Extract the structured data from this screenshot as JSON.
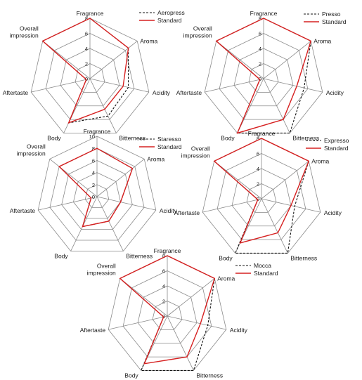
{
  "figure": {
    "colors": {
      "grid": "#8a8a8a",
      "standard": "#d62020",
      "sample": "#111111"
    }
  },
  "chart_data": [
    {
      "type": "radar",
      "axes": [
        "Fragrance",
        "Aroma",
        "Acidity",
        "Bitterness",
        "Body",
        "Aftertaste",
        "Overall impression"
      ],
      "r_ticks": [
        "2",
        "4",
        "6",
        "8"
      ],
      "rlim": [
        0,
        8
      ],
      "legend_position": "top-right",
      "series": [
        {
          "name": "Aeropress",
          "style": "dashed",
          "values": [
            8,
            6.5,
            5.2,
            5.5,
            6.5,
            0.5,
            8
          ]
        },
        {
          "name": "Standard",
          "style": "solid",
          "values": [
            8,
            6.5,
            4.5,
            4.5,
            6.5,
            0.5,
            8
          ]
        }
      ]
    },
    {
      "type": "radar",
      "axes": [
        "Fragrance",
        "Aroma",
        "Acidity",
        "Bitterness",
        "Body",
        "Aftertaste",
        "Overall impression"
      ],
      "r_ticks": [
        "2",
        "4",
        "6",
        "8"
      ],
      "rlim": [
        0,
        8
      ],
      "legend_position": "top-right",
      "series": [
        {
          "name": "Presso",
          "style": "dashed",
          "values": [
            8,
            8,
            5.5,
            8,
            8,
            0.5,
            8
          ]
        },
        {
          "name": "Standard",
          "style": "solid",
          "values": [
            8,
            8,
            4.5,
            6,
            8,
            0.5,
            8
          ]
        }
      ]
    },
    {
      "type": "radar",
      "axes": [
        "Fragrance",
        "Aroma",
        "Acidity",
        "Bitterness",
        "Body",
        "Aftertaste",
        "Overall impression"
      ],
      "r_ticks": [
        "2",
        "4",
        "6",
        "8",
        "10"
      ],
      "rlim": [
        0,
        10
      ],
      "legend_position": "top-right",
      "series": [
        {
          "name": "Staresso",
          "style": "dashed",
          "values": [
            8,
            7.5,
            4,
            4.5,
            5.5,
            1,
            8
          ]
        },
        {
          "name": "Standard",
          "style": "solid",
          "values": [
            8,
            7.5,
            4,
            4.5,
            5.5,
            1,
            8
          ]
        }
      ]
    },
    {
      "type": "radar",
      "axes": [
        "Fragrance",
        "Aroma",
        "Acidity",
        "Bitterness",
        "Body",
        "Aftertaste",
        "Overall impression"
      ],
      "r_ticks": [
        "2",
        "4",
        "6",
        "8"
      ],
      "rlim": [
        0,
        8
      ],
      "legend_position": "top-right",
      "series": [
        {
          "name": "Expresso",
          "style": "dashed",
          "values": [
            8,
            8,
            4.5,
            8,
            8,
            0.5,
            8
          ]
        },
        {
          "name": "Standard",
          "style": "solid",
          "values": [
            8,
            8,
            4,
            5,
            6.5,
            0.5,
            8
          ]
        }
      ]
    },
    {
      "type": "radar",
      "axes": [
        "Fragrance",
        "Aroma",
        "Acidity",
        "Bitterness",
        "Body",
        "Aftertaste",
        "Overall impression"
      ],
      "r_ticks": [
        "2",
        "4",
        "6",
        "8"
      ],
      "rlim": [
        0,
        8
      ],
      "legend_position": "top-right",
      "series": [
        {
          "name": "Mocca",
          "style": "dashed",
          "values": [
            8,
            8,
            5.5,
            8,
            8,
            0.5,
            8
          ]
        },
        {
          "name": "Standard",
          "style": "solid",
          "values": [
            8,
            8,
            4.5,
            6,
            7,
            0.5,
            8
          ]
        }
      ]
    }
  ]
}
